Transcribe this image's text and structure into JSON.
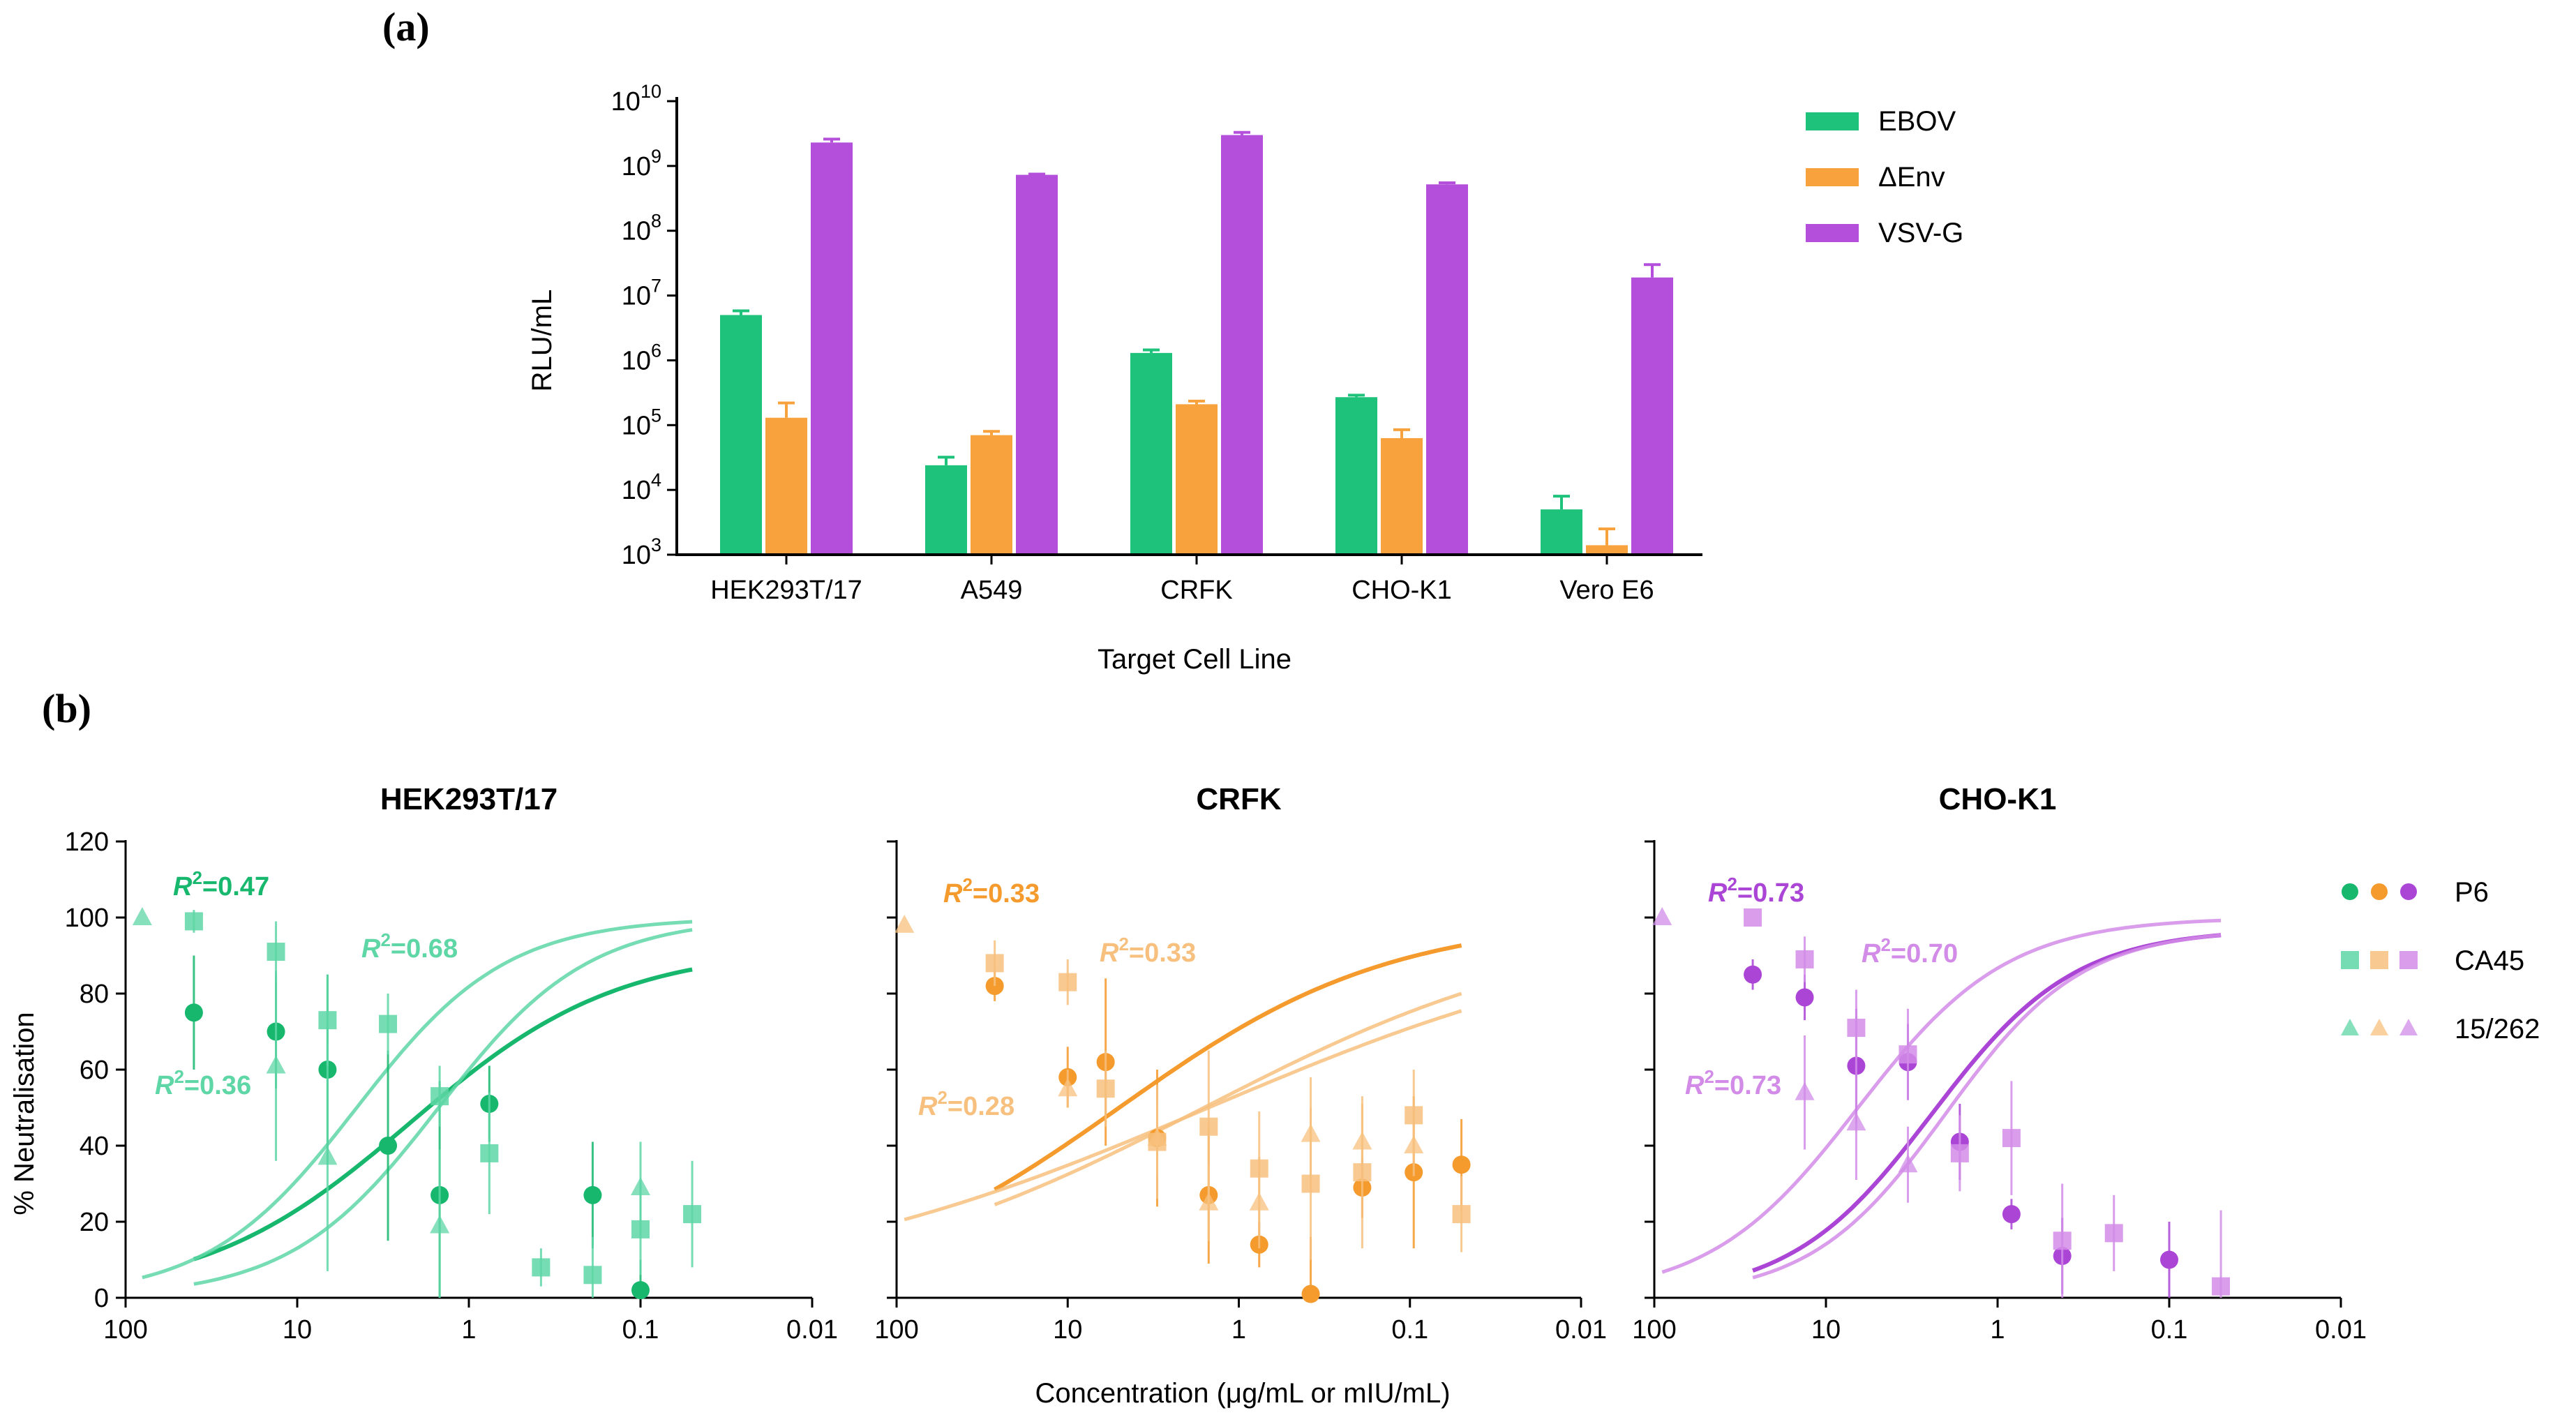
{
  "colors": {
    "ebov": "#1ec27a",
    "denv": "#f7a23c",
    "vsvg": "#b34fdb",
    "green_dark": "#17b86e",
    "green_light": "#5ed6a6",
    "orange_dark": "#f59a2c",
    "orange_light": "#f7c07e",
    "purple_dark": "#ab45d6",
    "purple_light": "#d28ce8",
    "axis": "#000000"
  },
  "chart_data": [
    {
      "panel": "(a)",
      "type": "bar",
      "yscale": "log",
      "xlabel": "Target Cell Line",
      "ylabel": "RLU/mL",
      "ylim": [
        1000,
        10000000000
      ],
      "ytick_labels": [
        {
          "base": "10",
          "exp": "3"
        },
        {
          "base": "10",
          "exp": "4"
        },
        {
          "base": "10",
          "exp": "5"
        },
        {
          "base": "10",
          "exp": "6"
        },
        {
          "base": "10",
          "exp": "7"
        },
        {
          "base": "10",
          "exp": "8"
        },
        {
          "base": "10",
          "exp": "9"
        },
        {
          "base": "10",
          "exp": "10"
        }
      ],
      "categories": [
        "HEK293T/17",
        "A549",
        "CRFK",
        "CHO-K1",
        "Vero E6"
      ],
      "legend_position": "top-right",
      "series": [
        {
          "name": "EBOV",
          "color_key": "ebov",
          "values": [
            5000000,
            24000,
            1300000,
            270000,
            5000
          ],
          "errors": [
            5800000,
            32000,
            1450000,
            290000,
            8000
          ]
        },
        {
          "name": "ΔEnv",
          "color_key": "denv",
          "values": [
            130000,
            70000,
            210000,
            63000,
            1400
          ],
          "errors": [
            220000,
            80000,
            235000,
            85000,
            2500
          ]
        },
        {
          "name": "VSV-G",
          "color_key": "vsvg",
          "values": [
            2300000000,
            730000000,
            3000000000,
            520000000,
            19000000
          ],
          "errors": [
            2600000000,
            750000000,
            3300000000,
            550000000,
            30000000
          ]
        }
      ]
    },
    {
      "panel": "(b)",
      "type": "scatter",
      "xscale": "log",
      "x_reversed": true,
      "xlim": [
        100,
        0.01
      ],
      "ylim": [
        0,
        120
      ],
      "xlabel": "Concentration (μg/mL or mIU/mL)",
      "ylabel": "% Neutralisation",
      "xtick_labels": [
        "100",
        "10",
        "1",
        "0.1",
        "0.01"
      ],
      "ytick_labels": [
        "0",
        "20",
        "40",
        "60",
        "80",
        "100",
        "120"
      ],
      "legend": [
        "P6",
        "CA45",
        "15/262"
      ],
      "subplots": [
        {
          "title": "HEK293T/17",
          "palette": "green",
          "series": [
            {
              "name": "P6",
              "marker": "circle",
              "x": [
                40,
                13.3,
                6.66,
                2.96,
                1.48,
                0.76,
                0.19,
                0.1
              ],
              "y": [
                75,
                70,
                60,
                40,
                27,
                51,
                27,
                2
              ],
              "errors": [
                15,
                15,
                25,
                25,
                30,
                10,
                14,
                8
              ],
              "fit_range": [
                40,
                0.05
              ],
              "fit": {
                "top": 92,
                "ic50": 2.2,
                "hill": 0.72
              }
            },
            {
              "name": "CA45",
              "marker": "square",
              "x": [
                40,
                13.3,
                6.66,
                2.96,
                1.48,
                0.76,
                0.38,
                0.19,
                0.1,
                0.05
              ],
              "y": [
                99,
                91,
                73,
                72,
                53,
                38,
                8,
                6,
                18,
                22
              ],
              "errors": [
                3,
                8,
                12,
                8,
                8,
                16,
                5,
                10,
                12,
                14
              ],
              "fit_range": [
                40,
                0.05
              ],
              "fit": {
                "top": 100,
                "ic50": 1.5,
                "hill": 1.0
              }
            },
            {
              "name": "15/262",
              "marker": "triangle",
              "x": [
                80,
                13.3,
                6.66,
                1.48,
                0.1
              ],
              "y": [
                100,
                61,
                37,
                19,
                29
              ],
              "errors": [
                0,
                25,
                30,
                20,
                12
              ],
              "fit_range": [
                80,
                0.05
              ],
              "fit": {
                "top": 100,
                "ic50": 4.5,
                "hill": 1.0
              }
            }
          ],
          "annotations": [
            {
              "text": "=0.36",
              "series": "15/262"
            },
            {
              "text": "=0.68",
              "series": "CA45"
            },
            {
              "text": "=0.47",
              "series": "P6"
            }
          ]
        },
        {
          "title": "CRFK",
          "palette": "orange",
          "series": [
            {
              "name": "P6",
              "marker": "circle",
              "x": [
                26.7,
                10,
                6.0,
                3.0,
                1.5,
                0.76,
                0.38,
                0.19,
                0.095,
                0.05
              ],
              "y": [
                82,
                58,
                62,
                42,
                27,
                14,
                1,
                29,
                33,
                35
              ],
              "errors": [
                4,
                8,
                22,
                18,
                18,
                6,
                15,
                8,
                20,
                12
              ],
              "fit_range": [
                26.7,
                0.05
              ],
              "fit": {
                "top": 100,
                "ic50": 5.0,
                "hill": 0.55
              }
            },
            {
              "name": "CA45",
              "marker": "square",
              "x": [
                26.7,
                10,
                6.0,
                3.0,
                1.5,
                0.76,
                0.38,
                0.19,
                0.095,
                0.05
              ],
              "y": [
                88,
                83,
                55,
                41,
                45,
                34,
                30,
                33,
                48,
                22
              ],
              "errors": [
                6,
                6,
                10,
                15,
                20,
                15,
                20,
                20,
                12,
                10
              ],
              "fit_range": [
                26.7,
                0.05
              ],
              "fit": {
                "top": 100,
                "ic50": 1.6,
                "hill": 0.4
              }
            },
            {
              "name": "15/262",
              "marker": "triangle",
              "x": [
                90,
                10,
                3.0,
                1.5,
                0.76,
                0.38,
                0.19,
                0.095
              ],
              "y": [
                98,
                55,
                42,
                25,
                25,
                43,
                41,
                40
              ],
              "errors": [
                0,
                5,
                10,
                10,
                12,
                15,
                10,
                8
              ],
              "fit_range": [
                90,
                0.05
              ],
              "fit": {
                "top": 100,
                "ic50": 1.5,
                "hill": 0.33
              }
            }
          ],
          "annotations": [
            {
              "text": "=0.28",
              "series": "15/262"
            },
            {
              "text": "=0.33",
              "series": "CA45"
            },
            {
              "text": "=0.33",
              "series": "P6"
            }
          ]
        },
        {
          "title": "CHO-K1",
          "palette": "purple",
          "series": [
            {
              "name": "P6",
              "marker": "circle",
              "x": [
                26.7,
                13.3,
                6.66,
                3.33,
                1.66,
                0.83,
                0.42,
                0.1
              ],
              "y": [
                85,
                79,
                61,
                62,
                41,
                22,
                11,
                10
              ],
              "errors": [
                4,
                6,
                15,
                10,
                10,
                4,
                10,
                10
              ],
              "fit_range": [
                26.7,
                0.05
              ],
              "fit": {
                "top": 97,
                "ic50": 2.4,
                "hill": 1.05
              }
            },
            {
              "name": "CA45",
              "marker": "square",
              "x": [
                26.7,
                13.3,
                6.66,
                3.33,
                1.66,
                0.83,
                0.42,
                0.21,
                0.05
              ],
              "y": [
                100,
                89,
                71,
                64,
                38,
                42,
                15,
                17,
                3
              ],
              "errors": [
                0,
                6,
                10,
                12,
                10,
                15,
                15,
                10,
                20
              ],
              "fit_range": [
                26.7,
                0.05
              ],
              "fit": {
                "top": 97,
                "ic50": 2.0,
                "hill": 1.1
              }
            },
            {
              "name": "15/262",
              "marker": "triangle",
              "x": [
                90,
                13.3,
                6.66,
                3.33
              ],
              "y": [
                100,
                54,
                46,
                35
              ],
              "errors": [
                0,
                15,
                15,
                10
              ],
              "fit_range": [
                90,
                0.05
              ],
              "fit": {
                "top": 100,
                "ic50": 6.5,
                "hill": 1.0
              }
            }
          ],
          "annotations": [
            {
              "text": "=0.73",
              "series": "15/262"
            },
            {
              "text": "=0.70",
              "series": "CA45"
            },
            {
              "text": "=0.73",
              "series": "P6"
            }
          ]
        }
      ]
    }
  ]
}
